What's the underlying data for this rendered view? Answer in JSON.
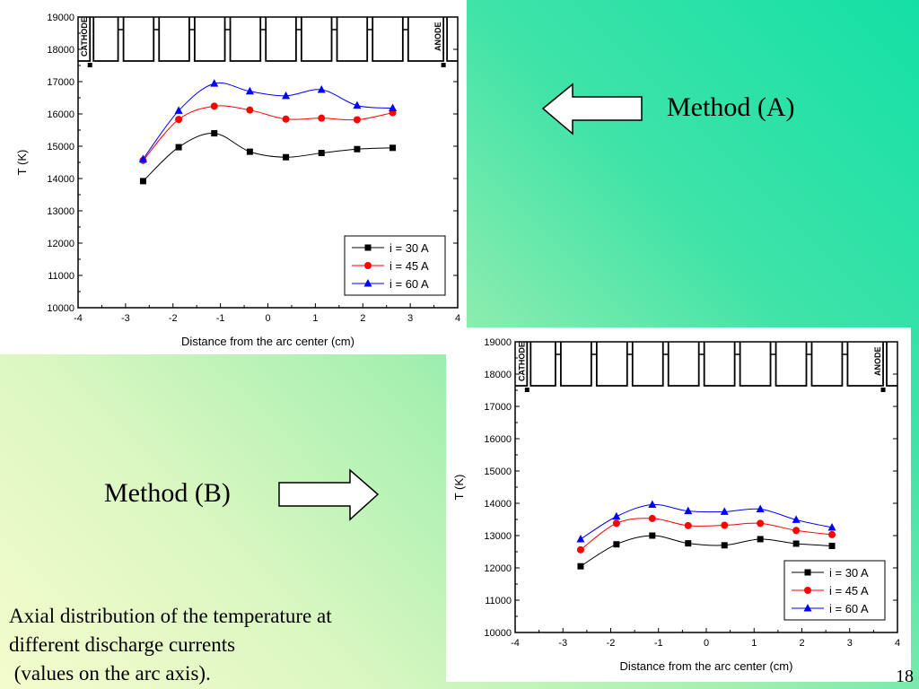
{
  "slide": {
    "method_a": "Method (A)",
    "method_b": "Method (B)",
    "caption_lines": [
      "Axial distribution of the temperature at",
      "different discharge currents",
      " (values on the arc axis)."
    ],
    "page_number": "18"
  },
  "colors": {
    "series": [
      "#000000",
      "#ff0000",
      "#0000ff"
    ],
    "marker_shapes": [
      "square",
      "circle",
      "triangle"
    ]
  },
  "chart_data": [
    {
      "name": "method-a",
      "type": "line",
      "xlabel": "Distance from the arc center (cm)",
      "ylabel": "T (K)",
      "xlim": [
        -4,
        4
      ],
      "ylim": [
        10000,
        19000
      ],
      "xticks": [
        "-4",
        "-3",
        "-2",
        "-1",
        "0",
        "1",
        "2",
        "3",
        "4"
      ],
      "yticks": [
        "10000",
        "11000",
        "12000",
        "13000",
        "14000",
        "15000",
        "16000",
        "17000",
        "18000",
        "19000"
      ],
      "electrode_labels": {
        "cathode": "CATHODE",
        "anode": "ANODE"
      },
      "legend_position": "bottom-right",
      "x": [
        -2.63,
        -1.88,
        -1.13,
        -0.38,
        0.38,
        1.13,
        1.88,
        2.63
      ],
      "series": [
        {
          "name": "i = 30 A",
          "values": [
            13920,
            14970,
            15400,
            14830,
            14660,
            14790,
            14910,
            14950
          ]
        },
        {
          "name": "i = 45 A",
          "values": [
            14560,
            15830,
            16240,
            16120,
            15840,
            15870,
            15820,
            16040
          ]
        },
        {
          "name": "i = 60 A",
          "values": [
            14600,
            16100,
            16940,
            16700,
            16560,
            16750,
            16260,
            16180
          ]
        }
      ]
    },
    {
      "name": "method-b",
      "type": "line",
      "xlabel": "Distance from the arc center (cm)",
      "ylabel": "T (K)",
      "xlim": [
        -4,
        4
      ],
      "ylim": [
        10000,
        19000
      ],
      "xticks": [
        "-4",
        "-3",
        "-2",
        "-1",
        "0",
        "1",
        "2",
        "3",
        "4"
      ],
      "yticks": [
        "10000",
        "11000",
        "12000",
        "13000",
        "14000",
        "15000",
        "16000",
        "17000",
        "18000",
        "19000"
      ],
      "electrode_labels": {
        "cathode": "CATHODE",
        "anode": "ANODE"
      },
      "legend_position": "bottom-right",
      "x": [
        -2.63,
        -1.88,
        -1.13,
        -0.38,
        0.38,
        1.13,
        1.88,
        2.63
      ],
      "series": [
        {
          "name": "i = 30 A",
          "values": [
            12050,
            12730,
            13000,
            12760,
            12700,
            12890,
            12750,
            12680
          ]
        },
        {
          "name": "i = 45 A",
          "values": [
            12560,
            13380,
            13530,
            13310,
            13320,
            13380,
            13160,
            13030
          ]
        },
        {
          "name": "i = 60 A",
          "values": [
            12890,
            13590,
            13960,
            13760,
            13740,
            13820,
            13490,
            13250
          ]
        }
      ]
    }
  ]
}
